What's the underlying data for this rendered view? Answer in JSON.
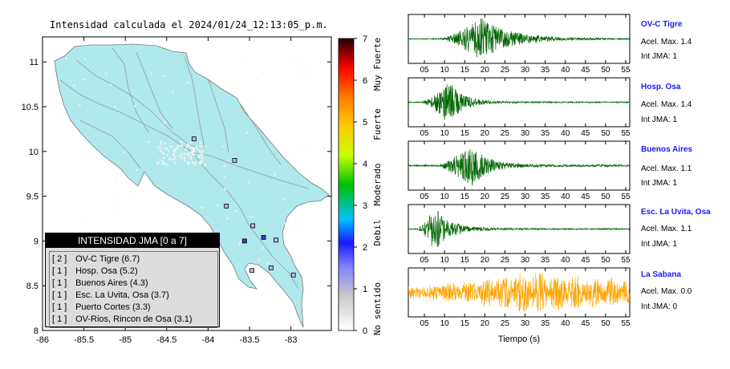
{
  "map_title": "Intensidad calculada el 2024/01/24_12:13:05_p.m.",
  "legend": {
    "header": "INTENSIDAD JMA [0 a 7]",
    "items": [
      {
        "count": "[ 2 ]",
        "label": "OV-C Tigre (6.7)"
      },
      {
        "count": "[ 1 ]",
        "label": "Hosp. Osa (5.2)"
      },
      {
        "count": "[ 1 ]",
        "label": "Buenos Aires (4.3)"
      },
      {
        "count": "[ 1 ]",
        "label": "Esc. La Uvita, Osa (3.7)"
      },
      {
        "count": "[ 1 ]",
        "label": "Puerto Cortes (3.3)"
      },
      {
        "count": "[ 1 ]",
        "label": "OV-Rios, Rincon de Osa (3.1)"
      }
    ]
  },
  "colorbar": {
    "ticks": [
      "0",
      "1",
      "2",
      "3",
      "4",
      "5",
      "6",
      "7"
    ],
    "labels": [
      "No sentido",
      "Debil",
      "Moderado",
      "Fuerte",
      "Muy Fuerte"
    ]
  },
  "stations": [
    {
      "name": "OV-C Tigre",
      "acel": "Acel. Max. 1.4",
      "int": "Int JMA: 1",
      "color": "#006400"
    },
    {
      "name": "Hosp. Osa",
      "acel": "Acel. Max. 1.4",
      "int": "Int JMA: 1",
      "color": "#006400"
    },
    {
      "name": "Buenos Aires",
      "acel": "Acel. Max. 1.1",
      "int": "Int JMA: 1",
      "color": "#006400"
    },
    {
      "name": "Esc. La Uvita, Osa",
      "acel": "Acel. Max. 1.1",
      "int": "Int JMA: 1",
      "color": "#006400"
    },
    {
      "name": "La Sabana",
      "acel": "Acel. Max. 0.0",
      "int": "Int JMA: 0",
      "color": "#ffa500"
    }
  ],
  "seismo_xlabel": "Tiempo (s)",
  "chart_data": [
    {
      "type": "scatter",
      "title": "Intensidad calculada el 2024/01/24_12:13:05_p.m.",
      "x_ticks": [
        "-86",
        "-85.5",
        "-85",
        "-84.5",
        "-84",
        "-83.5",
        "-83"
      ],
      "y_ticks": [
        "8",
        "8.5",
        "9",
        "9.5",
        "10",
        "10.5",
        "11"
      ],
      "xlim": [
        -86,
        -82.5
      ],
      "ylim": [
        8,
        11.3
      ],
      "points": [
        {
          "lon": -84.17,
          "lat": 10.14,
          "intensity": 1
        },
        {
          "lon": -83.68,
          "lat": 9.9,
          "intensity": 1
        },
        {
          "lon": -83.78,
          "lat": 9.39,
          "intensity": 1
        },
        {
          "lon": -83.46,
          "lat": 9.17,
          "intensity": 1
        },
        {
          "lon": -83.56,
          "lat": 9.0,
          "intensity": 2
        },
        {
          "lon": -83.33,
          "lat": 9.04,
          "intensity": 2
        },
        {
          "lon": -83.18,
          "lat": 9.01,
          "intensity": 1
        },
        {
          "lon": -83.24,
          "lat": 8.7,
          "intensity": 1
        },
        {
          "lon": -83.47,
          "lat": 8.67,
          "intensity": 1
        },
        {
          "lon": -82.97,
          "lat": 8.62,
          "intensity": 1
        }
      ]
    },
    {
      "type": "line",
      "xlabel": "Tiempo (s)",
      "x_ticks": [
        "05",
        "10",
        "15",
        "20",
        "25",
        "30",
        "35",
        "40",
        "45",
        "50",
        "55"
      ],
      "xlim": [
        1,
        56
      ],
      "series": [
        {
          "name": "OV-C Tigre",
          "onset": 8.5,
          "peak_t": 19,
          "peak_amp": 1.0,
          "decay": 7,
          "pre": 0.02,
          "tail": 0.03
        },
        {
          "name": "Hosp. Osa",
          "onset": 4,
          "peak_t": 11,
          "peak_amp": 1.0,
          "decay": 3.5,
          "pre": 0.02,
          "tail": 0.03
        },
        {
          "name": "Buenos Aires",
          "onset": 8,
          "peak_t": 16.5,
          "peak_amp": 1.0,
          "decay": 4,
          "pre": 0.03,
          "tail": 0.05
        },
        {
          "name": "Esc. La Uvita, Osa",
          "onset": 3,
          "peak_t": 7.5,
          "peak_amp": 1.0,
          "decay": 4,
          "pre": 0.03,
          "tail": 0.03
        },
        {
          "name": "La Sabana",
          "onset": 1,
          "peak_t": 30,
          "peak_amp": 1.0,
          "decay": 30,
          "pre": 0.3,
          "tail": 0.35
        }
      ]
    }
  ]
}
